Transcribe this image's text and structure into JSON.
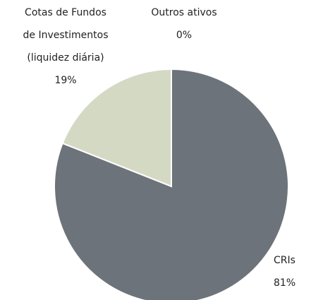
{
  "chart_data": {
    "type": "pie",
    "categories": [
      "CRIs",
      "Cotas de Fundos de Investimentos (liquidez diária)",
      "Outros ativos"
    ],
    "values": [
      81,
      19,
      0
    ],
    "value_labels": [
      "81%",
      "19%",
      "0%"
    ],
    "colors": [
      "#6d737a",
      "#d4d9c4",
      "#a9ada0"
    ]
  }
}
